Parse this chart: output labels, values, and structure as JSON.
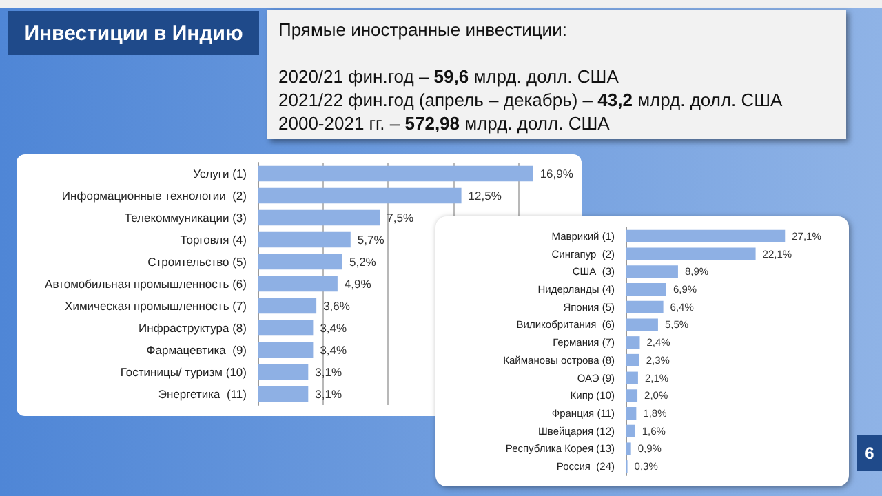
{
  "chart_data": [
    {
      "type": "other",
      "title": "Инвестиции в Индию",
      "subtitle": "Прямые иностранные инвестиции:",
      "annotations": [
        "2020/21 фин.год – 59,6 млрд. долл. США",
        "2021/22 фин.год (апрель – декабрь) – 43,2 млрд. долл. США",
        "2000-2021 гг. – 572,98 млрд. долл. США",
        "6"
      ]
    },
    {
      "type": "bar",
      "orientation": "horizontal",
      "categories": [
        "Услуги (1)",
        "Информационные технологии  (2)",
        "Телекоммуникации (3)",
        "Торговля (4)",
        "Строительство (5)",
        "Автомобильная промышленность (6)",
        "Химическая промышленность (7)",
        "Инфраструктура (8)",
        "Фармацевтика  (9)",
        "Гостиницы/ туризм (10)",
        "Энергетика  (11)"
      ],
      "values": [
        16.9,
        12.5,
        7.5,
        5.7,
        5.2,
        4.9,
        3.6,
        3.4,
        3.4,
        3.1,
        3.1
      ],
      "value_labels": [
        "16,9%",
        "12,5%",
        "7,5%",
        "5,7%",
        "5,2%",
        "4,9%",
        "3,6%",
        "3,4%",
        "3,4%",
        "3,1%",
        "3,1%"
      ],
      "color": "#8eb0e4",
      "xlim": [
        0,
        17
      ],
      "xticks": [
        {
          "value": 0,
          "label": null
        },
        {
          "value": 4,
          "label": null
        },
        {
          "value": 8,
          "label": null
        },
        {
          "value": 12,
          "label": null
        },
        {
          "value": 16,
          "label": null
        }
      ],
      "grid": "x",
      "tick_labels": "y"
    },
    {
      "type": "bar",
      "orientation": "horizontal",
      "categories": [
        "Маврикий (1)",
        "Сингапур  (2)",
        "США  (3)",
        "Нидерланды (4)",
        "Япония (5)",
        "Виликобритания  (6)",
        "Германия (7)",
        "Каймановы острова (8)",
        "ОАЭ (9)",
        "Кипр (10)",
        "Франция (11)",
        "Швейцария (12)",
        "Республика Корея (13)",
        "Россия  (24)"
      ],
      "values": [
        27.1,
        22.1,
        8.9,
        6.9,
        6.4,
        5.5,
        2.4,
        2.3,
        2.1,
        2.0,
        1.8,
        1.6,
        0.9,
        0.3
      ],
      "value_labels": [
        "27,1%",
        "22,1%",
        "8,9%",
        "6,9%",
        "6,4%",
        "5,5%",
        "2,4%",
        "2,3%",
        "2,1%",
        "2,0%",
        "1,8%",
        "1,6%",
        "0,9%",
        "0,3%"
      ],
      "color": "#8eb0e4",
      "tick_labels": "y"
    }
  ]
}
